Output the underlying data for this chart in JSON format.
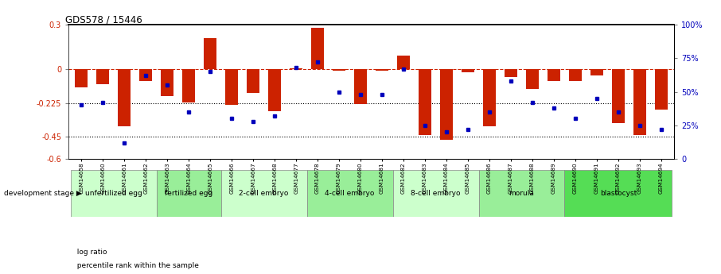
{
  "title": "GDS578 / 15446",
  "samples": [
    "GSM14658",
    "GSM14660",
    "GSM14661",
    "GSM14662",
    "GSM14663",
    "GSM14664",
    "GSM14665",
    "GSM14666",
    "GSM14667",
    "GSM14668",
    "GSM14677",
    "GSM14678",
    "GSM14679",
    "GSM14680",
    "GSM14681",
    "GSM14682",
    "GSM14683",
    "GSM14684",
    "GSM14685",
    "GSM14686",
    "GSM14687",
    "GSM14688",
    "GSM14689",
    "GSM14690",
    "GSM14691",
    "GSM14692",
    "GSM14693",
    "GSM14694"
  ],
  "log_ratio": [
    -0.12,
    -0.1,
    -0.38,
    -0.08,
    -0.18,
    -0.22,
    0.21,
    -0.24,
    -0.16,
    -0.28,
    0.01,
    0.28,
    -0.01,
    -0.23,
    -0.01,
    0.09,
    -0.44,
    -0.47,
    -0.02,
    -0.38,
    -0.05,
    -0.13,
    -0.08,
    -0.08,
    -0.04,
    -0.36,
    -0.44,
    -0.27
  ],
  "percentile": [
    40,
    42,
    12,
    62,
    55,
    35,
    65,
    30,
    28,
    32,
    68,
    72,
    50,
    48,
    48,
    67,
    25,
    20,
    22,
    35,
    58,
    42,
    38,
    30,
    45,
    35,
    25,
    22
  ],
  "stage_groups": [
    {
      "label": "unfertilized egg",
      "start": 0,
      "end": 4,
      "color": "#ccffcc"
    },
    {
      "label": "fertilized egg",
      "start": 4,
      "end": 7,
      "color": "#99ee99"
    },
    {
      "label": "2-cell embryo",
      "start": 7,
      "end": 11,
      "color": "#ccffcc"
    },
    {
      "label": "4-cell embryo",
      "start": 11,
      "end": 15,
      "color": "#99ee99"
    },
    {
      "label": "8-cell embryo",
      "start": 15,
      "end": 19,
      "color": "#ccffcc"
    },
    {
      "label": "morula",
      "start": 19,
      "end": 23,
      "color": "#99ee99"
    },
    {
      "label": "blastocyst",
      "start": 23,
      "end": 28,
      "color": "#55dd55"
    }
  ],
  "bar_color": "#cc2200",
  "dot_color": "#0000bb",
  "ylim_left": [
    -0.6,
    0.3
  ],
  "ylim_right": [
    0,
    100
  ],
  "yticks_left": [
    0.3,
    0.0,
    -0.225,
    -0.45,
    -0.6
  ],
  "yticks_left_labels": [
    "0.3",
    "0",
    "-0.225",
    "-0.45",
    "-0.6"
  ],
  "yticks_right": [
    100,
    75,
    50,
    25,
    0
  ],
  "yticks_right_labels": [
    "100%",
    "75%",
    "50%",
    "25%",
    "0"
  ],
  "background_color": "#ffffff"
}
